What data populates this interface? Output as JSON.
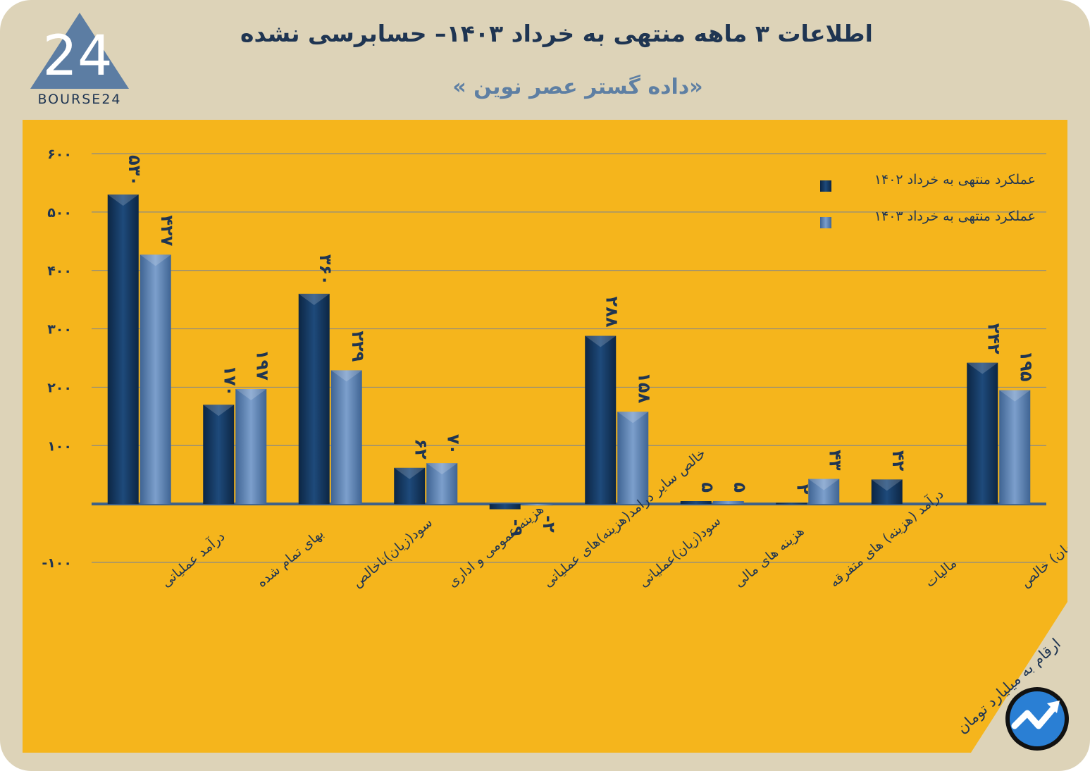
{
  "header": {
    "title": "اطلاعات ۳ ماهه منتهی به خرداد  ۱۴۰۳– حسابرسی نشده",
    "subtitle": "«داده گستر عصر نوین »"
  },
  "logo": {
    "text": "BOURSE24",
    "mark": "24"
  },
  "footer": {
    "unit_note": "ارقام به میلیارد تومان"
  },
  "colors": {
    "frame": "#ddd3b8",
    "panel": "#f5b51c",
    "dark_series": "#163a63",
    "light_series": "#5b80ae",
    "text": "#1f3552"
  },
  "chart_data": {
    "type": "bar",
    "title": "اطلاعات ۳ ماهه منتهی به خرداد ۱۴۰۳– حسابرسی نشده",
    "ylim": [
      -100,
      600
    ],
    "yticks": [
      -100,
      100,
      200,
      300,
      400,
      500,
      600
    ],
    "ytick_labels": [
      "-۱۰۰",
      "۱۰۰",
      "۲۰۰",
      "۳۰۰",
      "۴۰۰",
      "۵۰۰",
      "۶۰۰"
    ],
    "grid": true,
    "legend_position": "top-right",
    "categories": [
      "درآمد عملیاتی",
      "بهای تمام شده",
      "سود(زیان)ناخالص",
      "هزینه عمومی و اداری",
      "خالص سایر درامد(هزینه)های عملیاتی",
      "سود(زیان)عملیاتی",
      "هزینه های مالی",
      "درآمد (هزینه) های متفرقه",
      "مالیات",
      "سود(زیان) خالص"
    ],
    "series": [
      {
        "name": "عملکرد منتهی به خرداد ۱۴۰۲",
        "color": "#163a63",
        "values": [
          530,
          170,
          360,
          62,
          -9,
          288,
          5,
          2,
          42,
          242
        ],
        "labels": [
          "۵۳۰",
          "۱۷۰",
          "۳۶۰",
          "۶۲",
          "-۹",
          "۲۸۸",
          "۵",
          "۲",
          "۴۲",
          "۲۴۲"
        ]
      },
      {
        "name": "عملکرد منتهی به خرداد ۱۴۰۳",
        "color": "#5b80ae",
        "values": [
          427,
          197,
          229,
          70,
          -2,
          158,
          5,
          43,
          null,
          195
        ],
        "labels": [
          "۴۲۷",
          "۱۹۷",
          "۲۲۹",
          "۷۰",
          "-۲",
          "۱۵۸",
          "۵",
          "۴۳",
          "",
          "۱۹۵"
        ]
      }
    ]
  }
}
